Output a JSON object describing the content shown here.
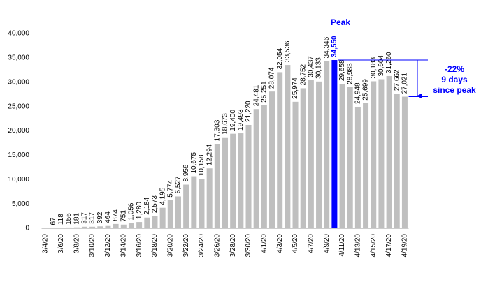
{
  "chart_data": {
    "type": "bar",
    "categories": [
      "3/4/20",
      null,
      "3/6/20",
      null,
      "3/8/20",
      null,
      "3/10/20",
      null,
      "3/12/20",
      null,
      "3/14/20",
      null,
      "3/16/20",
      null,
      "3/18/20",
      null,
      "3/20/20",
      null,
      "3/22/20",
      null,
      "3/24/20",
      null,
      "3/26/20",
      null,
      "3/28/20",
      null,
      "3/30/20",
      null,
      "4/1/20",
      null,
      "4/3/20",
      null,
      "4/5/20",
      null,
      "4/7/20",
      null,
      "4/9/20",
      null,
      "4/11/20",
      null,
      "4/13/20",
      null,
      "4/15/20",
      null,
      "4/17/20",
      null,
      "4/19/20"
    ],
    "values": [
      20,
      67,
      118,
      156,
      181,
      317,
      317,
      392,
      464,
      874,
      751,
      1056,
      1280,
      2184,
      2573,
      4195,
      5774,
      6527,
      8956,
      10675,
      10158,
      12294,
      17303,
      18673,
      19400,
      19493,
      21220,
      24481,
      25251,
      28074,
      32054,
      33536,
      25974,
      28752,
      30437,
      30133,
      34346,
      34550,
      29658,
      28983,
      24948,
      25699,
      30183,
      30604,
      31260,
      27662,
      27021
    ],
    "value_labels": [
      null,
      "67",
      "118",
      "156",
      "181",
      "317",
      "317",
      "392",
      "464",
      "874",
      "751",
      "1,056",
      "1,280",
      "2,184",
      "2,573",
      "4,195",
      "5,774",
      "6,527",
      "8,956",
      "10,675",
      "10,158",
      "12,294",
      "17,303",
      "18,673",
      "19,400",
      "19,493",
      "21,220",
      "24,481",
      "25,251",
      "28,074",
      "32,054",
      "33,536",
      "25,974",
      "28,752",
      "30,437",
      "30,133",
      "34,346",
      "34,550",
      "29,658",
      "28,983",
      "24,948",
      "25,699",
      "30,183",
      "30,604",
      "31,260",
      "27,662",
      "27,021"
    ],
    "colors": [
      "#bfbfbf",
      "#bfbfbf",
      "#bfbfbf",
      "#bfbfbf",
      "#bfbfbf",
      "#bfbfbf",
      "#bfbfbf",
      "#bfbfbf",
      "#bfbfbf",
      "#bfbfbf",
      "#bfbfbf",
      "#bfbfbf",
      "#bfbfbf",
      "#bfbfbf",
      "#bfbfbf",
      "#bfbfbf",
      "#bfbfbf",
      "#bfbfbf",
      "#bfbfbf",
      "#bfbfbf",
      "#bfbfbf",
      "#bfbfbf",
      "#bfbfbf",
      "#bfbfbf",
      "#bfbfbf",
      "#bfbfbf",
      "#bfbfbf",
      "#bfbfbf",
      "#bfbfbf",
      "#bfbfbf",
      "#bfbfbf",
      "#bfbfbf",
      "#bfbfbf",
      "#bfbfbf",
      "#bfbfbf",
      "#bfbfbf",
      "#bfbfbf",
      "#0000ff",
      "#bfbfbf",
      "#bfbfbf",
      "#bfbfbf",
      "#bfbfbf",
      "#bfbfbf",
      "#bfbfbf",
      "#bfbfbf",
      "#bfbfbf",
      "#bfbfbf"
    ],
    "ylim": [
      0,
      40000
    ],
    "yticks": [
      0,
      {
        "value": 5000,
        "label": "5,000"
      },
      {
        "value": 10000,
        "label": "10,000"
      },
      {
        "value": 15000,
        "label": "15,000"
      },
      {
        "value": 20000,
        "label": "20,000"
      },
      {
        "value": 25000,
        "label": "25,000"
      },
      {
        "value": 30000,
        "label": "30,000"
      },
      {
        "value": 35000,
        "label": "35,000"
      },
      {
        "value": 40000,
        "label": "40,000"
      }
    ],
    "grid": false,
    "annotations": {
      "peak": "Peak",
      "change": "-22%",
      "days": "9 days",
      "since": "since peak"
    }
  }
}
